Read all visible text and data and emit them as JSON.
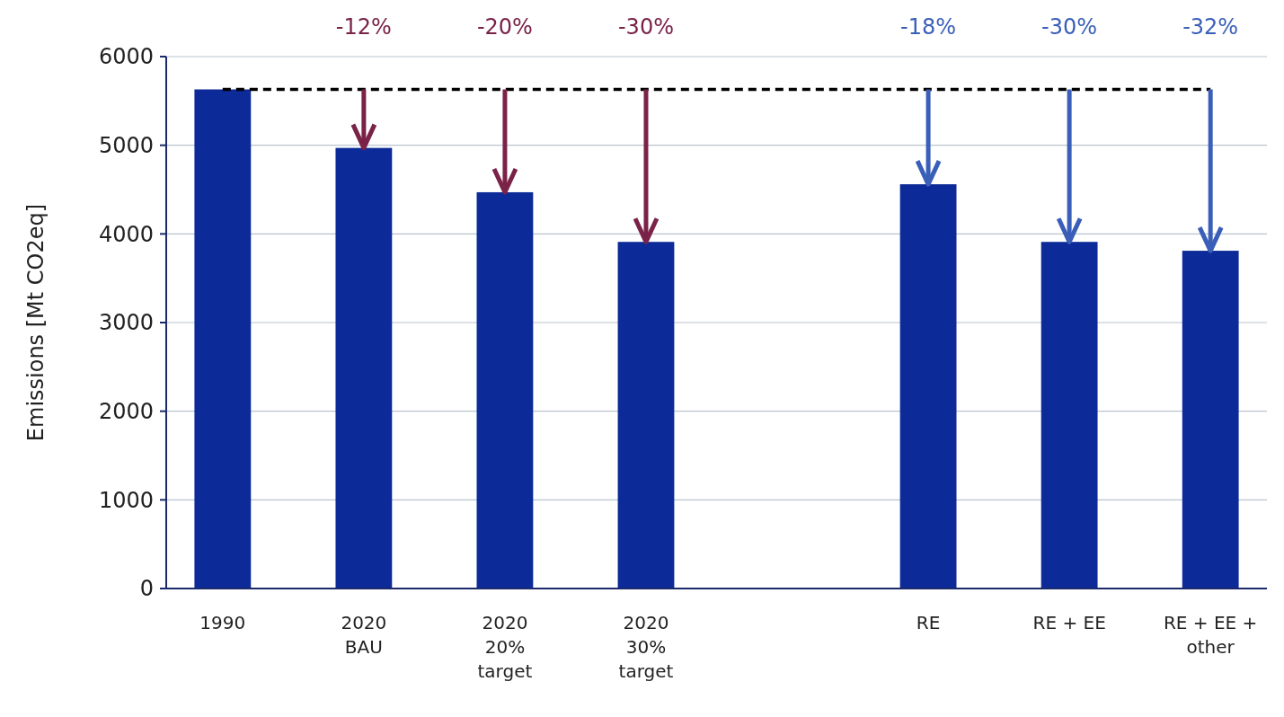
{
  "chart_data": {
    "type": "bar",
    "ylabel": "Emissions [Mt CO2eq]",
    "categories": [
      "1990",
      "2020\nBAU",
      "2020\n20%\ntarget",
      "2020\n30%\ntarget",
      null,
      "RE",
      "RE + EE",
      "RE + EE +\nother"
    ],
    "values": [
      5630,
      4970,
      4470,
      3910,
      null,
      4560,
      3910,
      3810
    ],
    "color": "#0c2a98",
    "ylim": [
      0,
      6000
    ],
    "yticks": [
      0,
      1000,
      2000,
      3000,
      4000,
      5000,
      6000
    ],
    "grid": "y",
    "ref_lines": [
      {
        "axis": "y",
        "value": 5630,
        "color": "#000000",
        "line_style": "dashed"
      }
    ],
    "annotations": [
      "-12%",
      "-20%",
      "-30%",
      "-18%",
      "-30%",
      "-32%"
    ]
  }
}
